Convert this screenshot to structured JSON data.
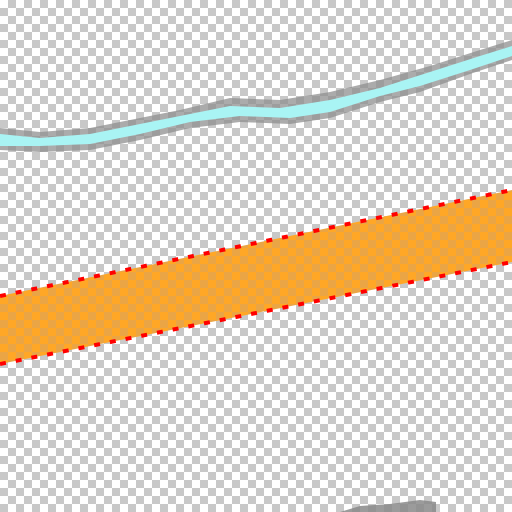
{
  "canvas": {
    "background": "transparency-checkerboard",
    "checker_light": "#ffffff",
    "checker_dark": "#c8c8c8"
  },
  "strokes": [
    {
      "name": "cyan-brush-stroke",
      "fill": "#a9f4f4",
      "outline": "#8a8a8a",
      "pixelated": true
    },
    {
      "name": "orange-selection-band",
      "fill": "#ffa726",
      "outline": "#ff0000",
      "outline_style": "dashed",
      "pattern": "checkerboard-through-fill"
    },
    {
      "name": "partial-gray-stroke",
      "fill": "#8a8a8a",
      "partially_visible": true
    }
  ]
}
